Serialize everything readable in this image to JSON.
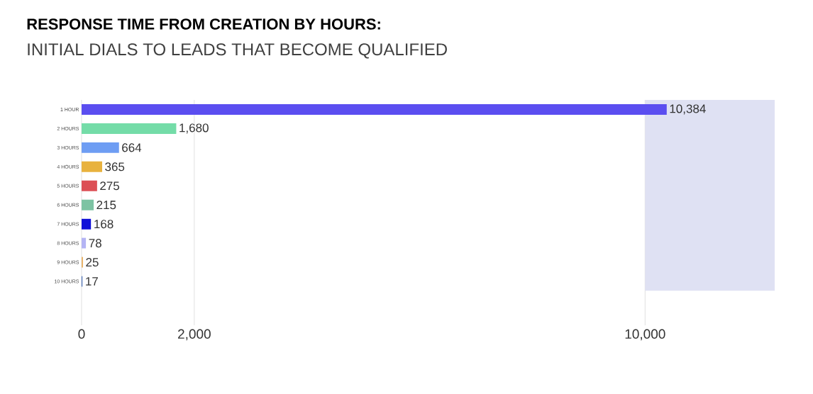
{
  "chart_data": {
    "type": "bar",
    "orientation": "horizontal",
    "title": "RESPONSE TIME FROM CREATION BY HOURS:",
    "subtitle": "INITIAL DIALS TO LEADS THAT BECOME QUALIFIED",
    "categories": [
      "1 HOUR",
      "2 HOURS",
      "3 HOURS",
      "4 HOURS",
      "5 HOURS",
      "6 HOURS",
      "7 HOURS",
      "8 HOURS",
      "9 HOURS",
      "10 HOURS"
    ],
    "values": [
      10384,
      1680,
      664,
      365,
      275,
      215,
      168,
      78,
      25,
      17
    ],
    "colors": [
      "#5b4ef0",
      "#74dca8",
      "#6e9df3",
      "#e8b23e",
      "#dc4f55",
      "#7dc3a3",
      "#1010d8",
      "#b4b4f4",
      "#e9b46a",
      "#3f66b0"
    ],
    "value_labels": [
      "10,384",
      "1,680",
      "664",
      "365",
      "275",
      "215",
      "168",
      "78",
      "25",
      "17"
    ],
    "xlim": [
      0,
      12300
    ],
    "xticks": [
      0,
      {
        "value": 2000,
        "label": "2,000"
      },
      {
        "value": 10000,
        "label": "10,000"
      }
    ],
    "grid": "x",
    "bands": [
      {
        "axis": "x",
        "from": 10000,
        "to": 12300,
        "color": "#dfe1f3"
      }
    ]
  }
}
